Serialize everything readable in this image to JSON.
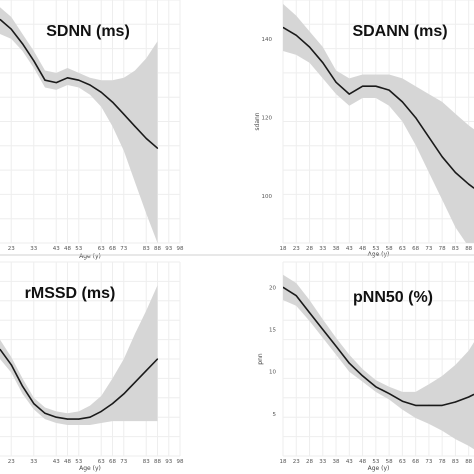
{
  "colors": {
    "band": "#d6d6d6",
    "line": "#1a1a1a",
    "grid": "#eeeeee",
    "divider": "#d0d0d0"
  },
  "chart_data": [
    {
      "type": "line",
      "title": "SDNN (ms)",
      "xlabel": "Age (y)",
      "ylabel": "",
      "x_ticks": [
        23,
        33,
        43,
        48,
        53,
        63,
        68,
        73,
        83,
        88,
        93,
        98
      ],
      "y_ticks": [],
      "show_y_ticks": false,
      "xlim": [
        18,
        98
      ],
      "ylim": [
        0,
        100
      ],
      "series": [
        {
          "x": [
            18,
            23,
            28,
            33,
            38,
            43,
            48,
            53,
            58,
            63,
            68,
            73,
            78,
            83,
            88
          ],
          "y": [
            92,
            88,
            82,
            75,
            67,
            66,
            68,
            67,
            65,
            62,
            58,
            53,
            48,
            43,
            39
          ],
          "lower": [
            86,
            84,
            79,
            72,
            64,
            63,
            65,
            64,
            61,
            56,
            48,
            38,
            25,
            12,
            0
          ],
          "upper": [
            97,
            93,
            86,
            79,
            71,
            70,
            72,
            70,
            68,
            67,
            67,
            68,
            71,
            76,
            83
          ]
        }
      ],
      "grid": true
    },
    {
      "type": "line",
      "title": "SDANN (ms)",
      "xlabel": "Age (y)",
      "ylabel": "sdann",
      "x_ticks": [
        18,
        23,
        28,
        33,
        38,
        43,
        48,
        53,
        58,
        63,
        68,
        73,
        78,
        83,
        88
      ],
      "y_ticks": [
        100,
        120,
        140
      ],
      "show_y_ticks": true,
      "xlim": [
        18,
        90
      ],
      "ylim": [
        88,
        150
      ],
      "series": [
        {
          "x": [
            18,
            23,
            28,
            33,
            38,
            43,
            48,
            53,
            58,
            63,
            68,
            73,
            78,
            83,
            88,
            90
          ],
          "y": [
            143,
            141,
            138,
            134,
            129,
            126,
            128,
            128,
            127,
            124,
            120,
            115,
            110,
            106,
            103,
            102
          ],
          "lower": [
            137,
            136,
            134,
            130,
            126,
            123,
            125,
            125,
            123,
            119,
            113,
            106,
            99,
            92,
            87,
            85
          ],
          "upper": [
            149,
            146,
            142,
            138,
            132,
            130,
            131,
            131,
            131,
            130,
            128,
            126,
            124,
            121,
            118,
            117
          ]
        }
      ],
      "grid": true
    },
    {
      "type": "line",
      "title": "rMSSD (ms)",
      "xlabel": "Age (y)",
      "ylabel": "",
      "x_ticks": [
        23,
        33,
        43,
        48,
        53,
        63,
        68,
        73,
        83,
        88,
        93,
        98
      ],
      "y_ticks": [],
      "show_y_ticks": false,
      "xlim": [
        18,
        98
      ],
      "ylim": [
        0,
        100
      ],
      "series": [
        {
          "x": [
            18,
            23,
            28,
            33,
            38,
            43,
            48,
            53,
            58,
            63,
            68,
            73,
            78,
            83,
            88
          ],
          "y": [
            55,
            47,
            36,
            27,
            22,
            20,
            19,
            19,
            20,
            23,
            27,
            32,
            38,
            44,
            50
          ],
          "lower": [
            50,
            43,
            32,
            24,
            19,
            17,
            16,
            16,
            16,
            17,
            18,
            18,
            18,
            18,
            18
          ],
          "upper": [
            60,
            51,
            40,
            30,
            25,
            23,
            22,
            23,
            26,
            31,
            40,
            50,
            63,
            75,
            88
          ]
        }
      ],
      "grid": true
    },
    {
      "type": "line",
      "title": "pNN50 (%)",
      "xlabel": "Age (y)",
      "ylabel": "pnn",
      "x_ticks": [
        18,
        23,
        28,
        33,
        38,
        43,
        48,
        53,
        58,
        63,
        68,
        73,
        78,
        83,
        88
      ],
      "y_ticks": [
        5,
        10,
        15,
        20
      ],
      "show_y_ticks": true,
      "xlim": [
        18,
        90
      ],
      "ylim": [
        0,
        23
      ],
      "series": [
        {
          "x": [
            18,
            23,
            28,
            33,
            38,
            43,
            48,
            53,
            58,
            63,
            68,
            73,
            78,
            83,
            88,
            90
          ],
          "y": [
            20,
            19,
            17,
            15,
            13,
            11,
            9.5,
            8.2,
            7.4,
            6.5,
            6,
            6,
            6,
            6.4,
            7,
            7.3
          ],
          "lower": [
            18.5,
            17.8,
            16,
            14,
            12,
            10,
            8.8,
            7.6,
            6.7,
            5.5,
            4.5,
            3.8,
            3,
            2,
            1.2,
            0.8
          ],
          "upper": [
            21.5,
            20.5,
            18.5,
            16.2,
            14,
            12,
            10.3,
            9,
            8.2,
            7.6,
            7.6,
            8.5,
            9.5,
            10.8,
            12.5,
            13.5
          ]
        }
      ],
      "grid": true
    }
  ]
}
